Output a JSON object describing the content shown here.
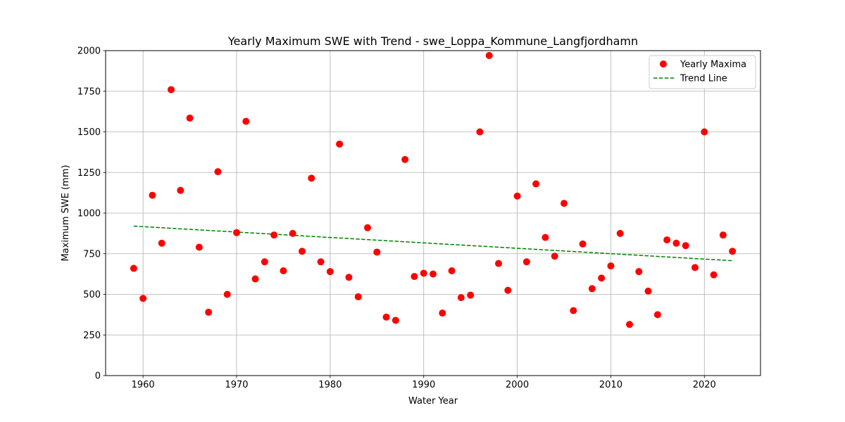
{
  "chart_data": {
    "type": "scatter",
    "title": "Yearly Maximum SWE with Trend - swe_Loppa_Kommune_Langfjordhamn",
    "xlabel": "Water Year",
    "ylabel": "Maximum SWE (mm)",
    "xlim": [
      1956,
      2026
    ],
    "ylim": [
      0,
      2000
    ],
    "xticks": [
      1960,
      1970,
      1980,
      1990,
      2000,
      2010,
      2020
    ],
    "yticks": [
      0,
      250,
      500,
      750,
      1000,
      1250,
      1500,
      1750,
      2000
    ],
    "grid": true,
    "legend_position": "top-right",
    "series": [
      {
        "name": "Yearly Maxima",
        "kind": "scatter",
        "color": "#ff0000",
        "x": [
          1959,
          1960,
          1961,
          1962,
          1963,
          1964,
          1965,
          1966,
          1967,
          1968,
          1969,
          1970,
          1971,
          1972,
          1973,
          1974,
          1975,
          1976,
          1977,
          1978,
          1979,
          1980,
          1981,
          1982,
          1983,
          1984,
          1985,
          1986,
          1987,
          1988,
          1989,
          1990,
          1991,
          1992,
          1993,
          1994,
          1995,
          1996,
          1997,
          1998,
          1999,
          2000,
          2001,
          2002,
          2003,
          2004,
          2005,
          2006,
          2007,
          2008,
          2009,
          2010,
          2011,
          2012,
          2013,
          2014,
          2015,
          2016,
          2017,
          2018,
          2019,
          2020,
          2021,
          2022,
          2023
        ],
        "y": [
          660,
          475,
          1110,
          815,
          1760,
          1140,
          1585,
          790,
          390,
          1255,
          500,
          880,
          1565,
          595,
          700,
          865,
          645,
          875,
          765,
          1215,
          700,
          640,
          1425,
          605,
          485,
          910,
          760,
          360,
          340,
          1330,
          610,
          630,
          625,
          385,
          645,
          480,
          495,
          1500,
          1970,
          690,
          525,
          1105,
          700,
          1180,
          850,
          735,
          1060,
          400,
          810,
          535,
          600,
          675,
          875,
          315,
          640,
          520,
          375,
          835,
          815,
          800,
          665,
          1500,
          620,
          865,
          765
        ]
      },
      {
        "name": "Trend Line",
        "kind": "line",
        "style": "dashed",
        "color": "#008000",
        "x": [
          1959,
          2023
        ],
        "y": [
          920,
          707
        ]
      }
    ]
  }
}
